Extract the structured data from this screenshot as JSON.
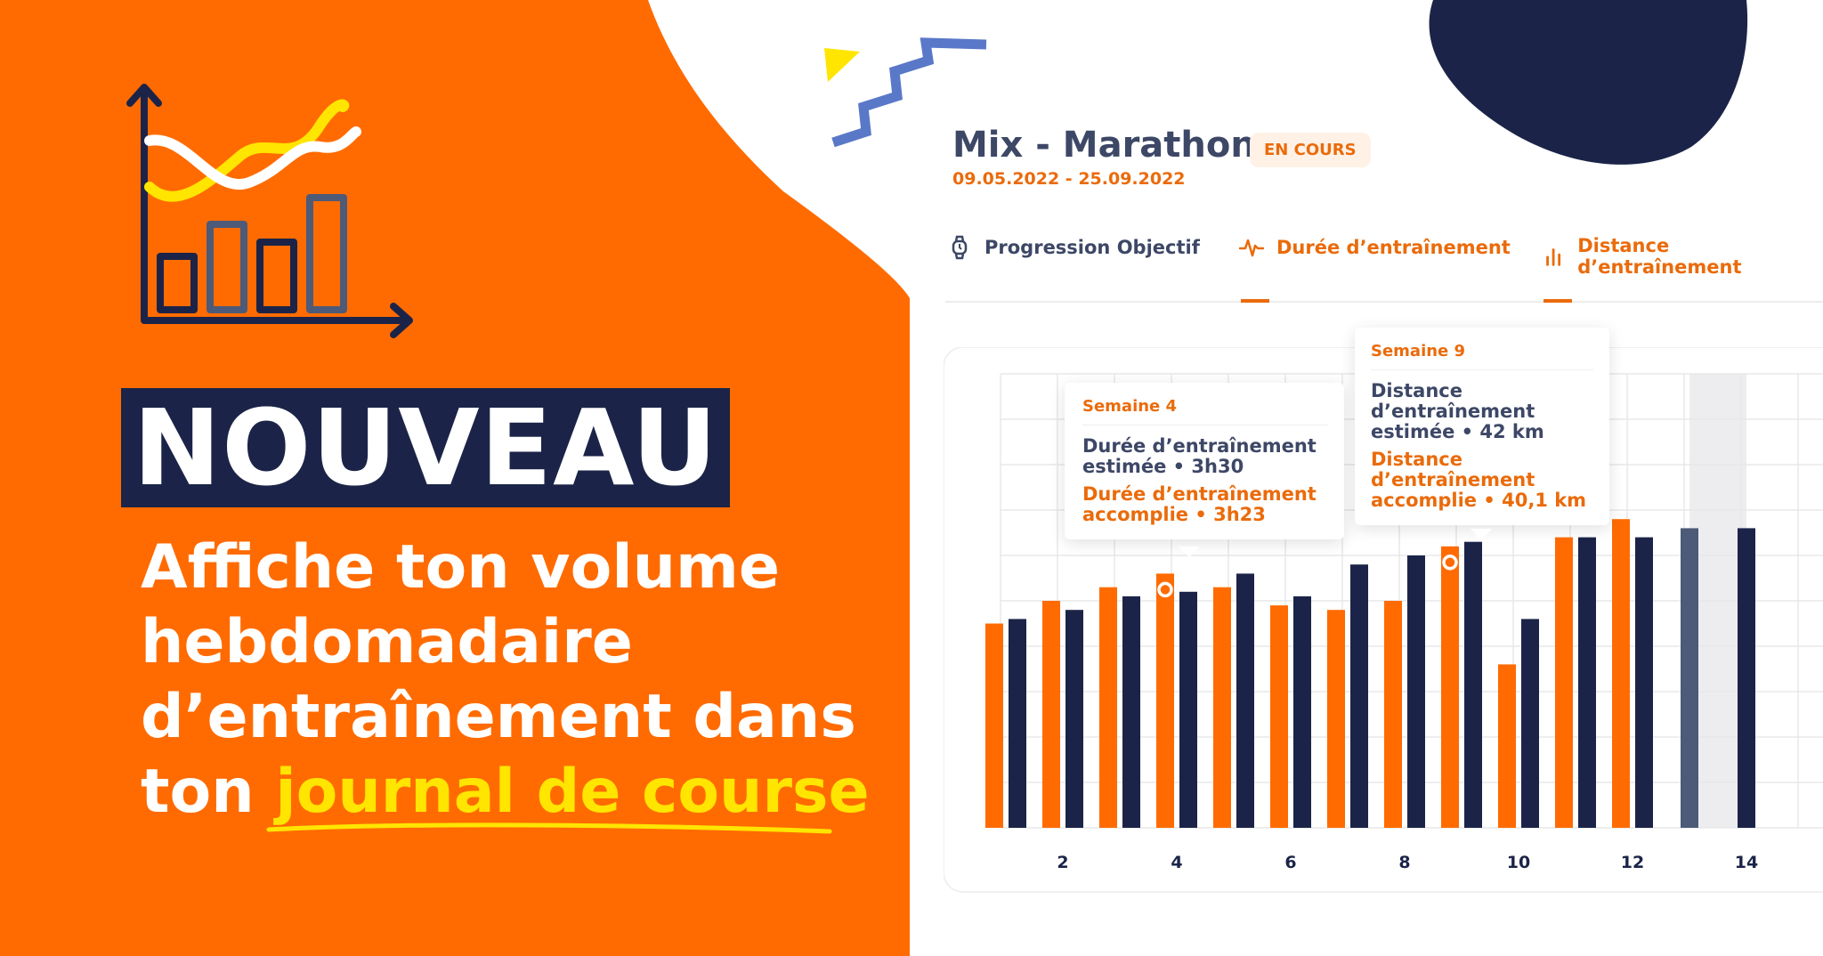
{
  "promo": {
    "badge": "NOUVEAU",
    "headline_line1": "Affiche ton volume",
    "headline_line2": "hebdomadaire",
    "headline_line3": "d’entraînement dans",
    "headline_line4_prefix": "ton ",
    "headline_highlight": "journal de course"
  },
  "card": {
    "title": "Mix - Marathon",
    "status": "EN COURS",
    "dates": "09.05.2022 - 25.09.2022",
    "tabs": [
      {
        "label": "Progression Objectif",
        "icon": "watch-icon"
      },
      {
        "label": "Durée d’entraînement",
        "icon": "activity-pulse-icon"
      },
      {
        "label": "Distance d’entraînement",
        "icon": "bar-chart-icon"
      }
    ]
  },
  "tooltips": [
    {
      "week": "Semaine 4",
      "estimated": [
        "Durée d’entraînement",
        "estimée • 3h30"
      ],
      "achieved": [
        "Durée d’entraînement",
        "accomplie • 3h23"
      ]
    },
    {
      "week": "Semaine 9",
      "estimated": [
        "Distance",
        "d’entraînement",
        "estimée • 42 km"
      ],
      "achieved": [
        "Distance",
        "d’entraînement",
        "accomplie • 40,1 km"
      ]
    }
  ],
  "colors": {
    "orange": "#ff6b00",
    "navy": "#1b2448",
    "slate": "#4d5a78",
    "yellow": "#ffe500",
    "blue": "#5a78c8"
  },
  "chart_data": {
    "type": "bar",
    "x": [
      1,
      2,
      3,
      4,
      5,
      6,
      7,
      8,
      9,
      10,
      11,
      12,
      13,
      14,
      15
    ],
    "x_ticks": [
      2,
      4,
      6,
      8,
      10,
      12,
      14
    ],
    "series": [
      {
        "values": [
          0.45,
          0.5,
          0.53,
          0.56,
          0.53,
          0.49,
          0.48,
          0.5,
          0.62,
          0.36,
          0.64,
          0.68,
          null,
          null,
          null
        ]
      },
      {
        "values": [
          0.46,
          0.48,
          0.51,
          0.52,
          0.56,
          0.51,
          0.58,
          0.6,
          0.63,
          0.46,
          0.64,
          0.64,
          null,
          null,
          null
        ]
      },
      {
        "values": [
          null,
          null,
          null,
          null,
          null,
          null,
          null,
          null,
          null,
          null,
          null,
          null,
          0.66,
          null,
          null
        ]
      },
      {
        "values": [
          null,
          null,
          null,
          null,
          null,
          null,
          null,
          null,
          null,
          null,
          null,
          null,
          null,
          0.66,
          null
        ]
      }
    ],
    "ylim": [
      0,
      1
    ],
    "grid": true,
    "highlighted_weeks": [
      4,
      9
    ]
  }
}
